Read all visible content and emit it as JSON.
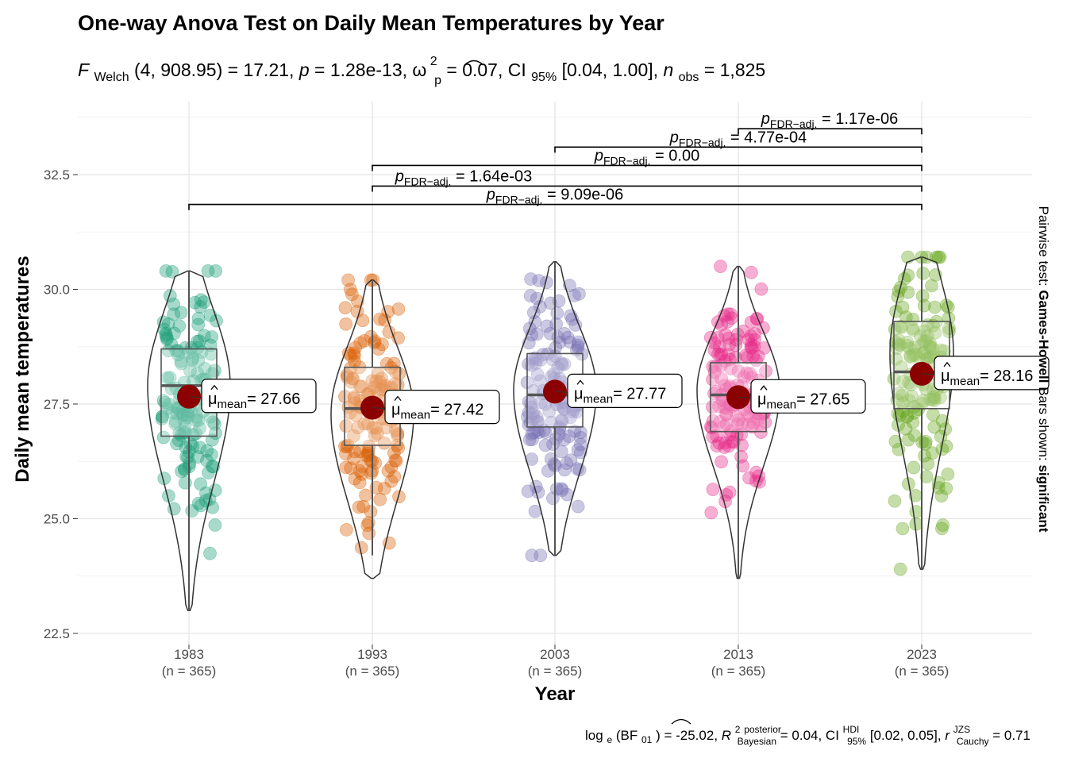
{
  "chart_data": {
    "type": "violin-box-scatter",
    "title": "One-way Anova Test on Daily Mean Temperatures by Year",
    "subtitle": {
      "f_symbol": "F",
      "f_sub": "Welch",
      "f_args": "(4, 908.95)",
      "f_value": "= 17.21, ",
      "p_symbol": "p",
      "p_value": " = 1.28e-13, ",
      "omega_symbol": "ω",
      "omega_sup": "2",
      "omega_sub": "p",
      "omega_value": " = 0.07, CI",
      "ci_sub": "95%",
      "ci_value": " [0.04, 1.00], ",
      "n_symbol": "n",
      "n_sub": "obs",
      "n_value": " = 1,825"
    },
    "caption": {
      "log_part": "log",
      "log_sub": "e",
      "bf_part": "(BF",
      "bf_sub": "01",
      "bf_value": ") = -25.02, ",
      "r_symbol": "R",
      "r_sup": "2",
      "r_sup2": "posterior",
      "r_sub": "Bayesian",
      "r_value": " = 0.04, CI",
      "ci_sup": "HDI",
      "ci_sub": "95%",
      "ci_value": " [0.02, 0.05], ",
      "rc_symbol": "r",
      "rc_sup": "JZS",
      "rc_sub": "Cauchy",
      "rc_value": " = 0.71"
    },
    "xlabel": "Year",
    "ylabel": "Daily mean temperatures",
    "right_label_plain": "Pairwise test: ",
    "right_label_bold_1": "Games-Howell",
    "right_label_mid": " Bars shown: ",
    "right_label_bold_2": "significant",
    "ylim": [
      22.4,
      33.8
    ],
    "yticks": [
      22.5,
      25.0,
      27.5,
      30.0,
      32.5
    ],
    "ytick_labels": [
      "22.5",
      "25.0",
      "27.5",
      "30.0",
      "32.5"
    ],
    "grid": true,
    "groups": [
      {
        "name": "1983",
        "n_label": "(n = 365)",
        "color": "#1B9E77",
        "mean": 27.66,
        "mean_label": "= 27.66",
        "median": 27.9,
        "q1": 26.8,
        "q3": 28.7,
        "whisker_low": 23.0,
        "whisker_high": 30.4,
        "min": 23.0,
        "max": 30.4
      },
      {
        "name": "1993",
        "n_label": "(n = 365)",
        "color": "#D95F02",
        "mean": 27.42,
        "mean_label": "= 27.42",
        "median": 27.4,
        "q1": 26.6,
        "q3": 28.3,
        "whisker_low": 24.2,
        "whisker_high": 30.2,
        "min": 23.7,
        "max": 30.2
      },
      {
        "name": "2003",
        "n_label": "(n = 365)",
        "color": "#7570B3",
        "mean": 27.77,
        "mean_label": "= 27.77",
        "median": 27.7,
        "q1": 27.0,
        "q3": 28.6,
        "whisker_low": 24.2,
        "whisker_high": 30.6,
        "min": 24.2,
        "max": 30.6
      },
      {
        "name": "2013",
        "n_label": "(n = 365)",
        "color": "#E7298A",
        "mean": 27.65,
        "mean_label": "= 27.65",
        "median": 27.7,
        "q1": 26.9,
        "q3": 28.4,
        "whisker_low": 23.7,
        "whisker_high": 30.5,
        "min": 23.7,
        "max": 30.5
      },
      {
        "name": "2023",
        "n_label": "(n = 365)",
        "color": "#66A61E",
        "mean": 28.16,
        "mean_label": "= 28.16",
        "median": 28.2,
        "q1": 27.4,
        "q3": 29.3,
        "whisker_low": 23.9,
        "whisker_high": 30.7,
        "min": 23.9,
        "max": 30.7
      }
    ],
    "mean_symbol": "μ",
    "mean_sub": "mean",
    "pairwise": [
      {
        "from": "1983",
        "to": "2023",
        "y": 31.85,
        "p_prefix": "p",
        "p_sub": "FDR−adj.",
        "p_value": " = 9.09e-06"
      },
      {
        "from": "1993",
        "to": "2023",
        "y": 32.25,
        "p_prefix": "p",
        "p_sub": "FDR−adj.",
        "p_value": " = 1.64e-03"
      },
      {
        "from": "1993",
        "to": "2023",
        "y": 32.7,
        "p_prefix": "p",
        "p_sub": "FDR−adj.",
        "p_value": " = 0.00"
      },
      {
        "from": "2003",
        "to": "2023",
        "y": 33.1,
        "p_prefix": "p",
        "p_sub": "FDR−adj.",
        "p_value": " = 4.77e-04"
      },
      {
        "from": "2013",
        "to": "2023",
        "y": 33.5,
        "p_prefix": "p",
        "p_sub": "FDR−adj.",
        "p_value": " = 1.17e-06"
      }
    ]
  }
}
